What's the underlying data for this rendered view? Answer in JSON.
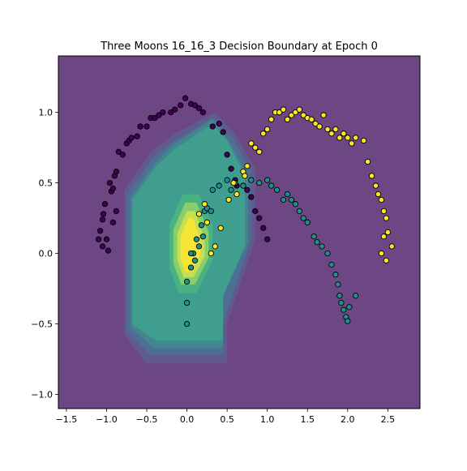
{
  "chart_data": {
    "type": "scatter",
    "title": "Three Moons 16_16_3 Decision Boundary at Epoch 0",
    "xlabel": "",
    "ylabel": "",
    "xlim": [
      -1.6,
      2.9
    ],
    "ylim": [
      -1.1,
      1.4
    ],
    "xticks": [
      -1.5,
      -1.0,
      -0.5,
      0.0,
      0.5,
      1.0,
      1.5,
      2.0,
      2.5
    ],
    "yticks": [
      -1.0,
      -0.5,
      0.0,
      0.5,
      1.0
    ],
    "xtick_labels": [
      "−1.5",
      "−1.0",
      "−0.5",
      "0.0",
      "0.5",
      "1.0",
      "1.5",
      "2.0",
      "2.5"
    ],
    "ytick_labels": [
      "−1.0",
      "−0.5",
      "0.0",
      "0.5",
      "1.0"
    ],
    "grid": false,
    "background_region_color": "#6c4783",
    "contours": [
      {
        "level": 1,
        "color": "#5f5b8f",
        "points": [
          [
            -0.78,
            -0.58
          ],
          [
            -0.78,
            0.45
          ],
          [
            -0.45,
            0.72
          ],
          [
            -0.15,
            0.85
          ],
          [
            0.35,
            1.0
          ],
          [
            0.6,
            0.85
          ],
          [
            0.85,
            0.6
          ],
          [
            0.85,
            0.1
          ],
          [
            0.5,
            -0.5
          ],
          [
            0.5,
            -0.78
          ],
          [
            -0.5,
            -0.78
          ]
        ]
      },
      {
        "level": 2,
        "color": "#4e6e93",
        "points": [
          [
            -0.75,
            -0.55
          ],
          [
            -0.75,
            0.42
          ],
          [
            -0.42,
            0.68
          ],
          [
            -0.15,
            0.8
          ],
          [
            0.32,
            0.96
          ],
          [
            0.57,
            0.82
          ],
          [
            0.8,
            0.58
          ],
          [
            0.8,
            0.1
          ],
          [
            0.45,
            -0.5
          ],
          [
            0.45,
            -0.72
          ],
          [
            -0.45,
            -0.72
          ]
        ]
      },
      {
        "level": 3,
        "color": "#42878e",
        "points": [
          [
            -0.7,
            -0.52
          ],
          [
            -0.7,
            0.4
          ],
          [
            -0.4,
            0.64
          ],
          [
            -0.15,
            0.78
          ],
          [
            0.32,
            0.95
          ],
          [
            0.52,
            0.8
          ],
          [
            0.76,
            0.55
          ],
          [
            0.76,
            0.08
          ],
          [
            0.45,
            -0.3
          ],
          [
            0.45,
            -0.67
          ],
          [
            -0.42,
            -0.67
          ]
        ]
      },
      {
        "level": 4,
        "color": "#3f9e8e",
        "points": [
          [
            -0.68,
            -0.5
          ],
          [
            -0.68,
            0.38
          ],
          [
            -0.38,
            0.62
          ],
          [
            -0.15,
            0.74
          ],
          [
            0.32,
            0.92
          ],
          [
            0.5,
            0.8
          ],
          [
            0.72,
            0.55
          ],
          [
            0.72,
            0.05
          ],
          [
            0.45,
            -0.3
          ],
          [
            0.45,
            -0.62
          ],
          [
            -0.38,
            -0.62
          ]
        ]
      },
      {
        "level": 5,
        "color": "#49b283",
        "points": [
          [
            -0.22,
            0.2
          ],
          [
            -0.05,
            0.42
          ],
          [
            0.15,
            0.42
          ],
          [
            0.32,
            0.2
          ],
          [
            0.32,
            -0.05
          ],
          [
            0.12,
            -0.28
          ],
          [
            -0.1,
            -0.28
          ],
          [
            -0.22,
            -0.1
          ]
        ]
      },
      {
        "level": 6,
        "color": "#88cf6c",
        "points": [
          [
            -0.17,
            0.17
          ],
          [
            -0.02,
            0.36
          ],
          [
            0.12,
            0.36
          ],
          [
            0.27,
            0.15
          ],
          [
            0.27,
            -0.03
          ],
          [
            0.1,
            -0.22
          ],
          [
            -0.07,
            -0.22
          ],
          [
            -0.17,
            -0.07
          ]
        ]
      },
      {
        "level": 7,
        "color": "#c8df50",
        "points": [
          [
            -0.12,
            0.14
          ],
          [
            0.0,
            0.3
          ],
          [
            0.1,
            0.3
          ],
          [
            0.22,
            0.1
          ],
          [
            0.22,
            -0.02
          ],
          [
            0.08,
            -0.17
          ],
          [
            -0.04,
            -0.17
          ],
          [
            -0.12,
            -0.05
          ]
        ]
      },
      {
        "level": 8,
        "color": "#f5e636",
        "points": [
          [
            -0.08,
            0.12
          ],
          [
            0.02,
            0.25
          ],
          [
            0.08,
            0.25
          ],
          [
            0.17,
            0.08
          ],
          [
            0.17,
            0.0
          ],
          [
            0.06,
            -0.13
          ],
          [
            -0.02,
            -0.13
          ],
          [
            -0.08,
            -0.04
          ]
        ]
      }
    ],
    "series": [
      {
        "color": "#440154",
        "points": [
          [
            -1.08,
            0.16
          ],
          [
            -1.05,
            0.24
          ],
          [
            -1.04,
            0.28
          ],
          [
            -1.02,
            0.35
          ],
          [
            -1.0,
            0.1
          ],
          [
            -0.98,
            0.02
          ],
          [
            -0.96,
            0.5
          ],
          [
            -0.94,
            0.44
          ],
          [
            -0.92,
            0.46
          ],
          [
            -0.9,
            0.55
          ],
          [
            -0.88,
            0.58
          ],
          [
            -0.85,
            0.72
          ],
          [
            -0.8,
            0.7
          ],
          [
            -0.75,
            0.78
          ],
          [
            -0.72,
            0.8
          ],
          [
            -0.69,
            0.82
          ],
          [
            -0.62,
            0.83
          ],
          [
            -0.58,
            0.9
          ],
          [
            -0.5,
            0.9
          ],
          [
            -0.45,
            0.96
          ],
          [
            -0.4,
            0.96
          ],
          [
            -0.35,
            0.98
          ],
          [
            -0.3,
            1.0
          ],
          [
            -0.2,
            1.0
          ],
          [
            -0.15,
            1.02
          ],
          [
            -0.08,
            1.05
          ],
          [
            -0.02,
            1.1
          ],
          [
            0.05,
            1.06
          ],
          [
            0.1,
            1.05
          ],
          [
            0.15,
            1.03
          ],
          [
            0.2,
            1.0
          ],
          [
            0.32,
            0.9
          ],
          [
            0.4,
            0.92
          ],
          [
            0.45,
            0.86
          ],
          [
            0.5,
            0.7
          ],
          [
            0.55,
            0.6
          ],
          [
            0.6,
            0.52
          ],
          [
            0.62,
            0.48
          ],
          [
            0.7,
            0.48
          ],
          [
            0.75,
            0.45
          ],
          [
            0.8,
            0.4
          ],
          [
            0.85,
            0.3
          ],
          [
            0.9,
            0.25
          ],
          [
            0.95,
            0.18
          ],
          [
            1.0,
            0.1
          ],
          [
            -1.1,
            0.1
          ],
          [
            -1.05,
            0.05
          ],
          [
            -0.92,
            0.22
          ],
          [
            -0.88,
            0.3
          ]
        ]
      },
      {
        "color": "#21908d",
        "points": [
          [
            0.0,
            -0.5
          ],
          [
            0.0,
            -0.35
          ],
          [
            0.0,
            -0.2
          ],
          [
            0.05,
            -0.1
          ],
          [
            0.08,
            0.0
          ],
          [
            0.12,
            0.1
          ],
          [
            0.15,
            0.05
          ],
          [
            0.18,
            0.2
          ],
          [
            0.22,
            0.3
          ],
          [
            0.25,
            0.32
          ],
          [
            0.32,
            0.45
          ],
          [
            0.4,
            0.48
          ],
          [
            0.5,
            0.52
          ],
          [
            0.55,
            0.45
          ],
          [
            0.6,
            0.5
          ],
          [
            0.7,
            0.48
          ],
          [
            0.8,
            0.52
          ],
          [
            0.9,
            0.5
          ],
          [
            1.0,
            0.52
          ],
          [
            1.05,
            0.48
          ],
          [
            1.12,
            0.45
          ],
          [
            1.2,
            0.38
          ],
          [
            1.25,
            0.42
          ],
          [
            1.3,
            0.38
          ],
          [
            1.35,
            0.35
          ],
          [
            1.4,
            0.3
          ],
          [
            1.45,
            0.25
          ],
          [
            1.5,
            0.22
          ],
          [
            1.58,
            0.12
          ],
          [
            1.62,
            0.08
          ],
          [
            1.68,
            0.05
          ],
          [
            1.75,
            0.0
          ],
          [
            1.8,
            -0.08
          ],
          [
            1.85,
            -0.15
          ],
          [
            1.88,
            -0.22
          ],
          [
            1.9,
            -0.3
          ],
          [
            1.92,
            -0.35
          ],
          [
            1.95,
            -0.4
          ],
          [
            1.98,
            -0.45
          ],
          [
            2.0,
            -0.48
          ],
          [
            2.02,
            -0.38
          ],
          [
            2.1,
            -0.3
          ],
          [
            0.05,
            0.0
          ],
          [
            0.1,
            -0.05
          ],
          [
            0.2,
            0.12
          ],
          [
            0.3,
            0.3
          ]
        ]
      },
      {
        "color": "#fde725",
        "points": [
          [
            0.15,
            0.28
          ],
          [
            0.22,
            0.35
          ],
          [
            0.25,
            0.22
          ],
          [
            0.3,
            0.0
          ],
          [
            0.35,
            0.05
          ],
          [
            0.42,
            0.18
          ],
          [
            0.52,
            0.38
          ],
          [
            0.58,
            0.5
          ],
          [
            0.62,
            0.42
          ],
          [
            0.7,
            0.58
          ],
          [
            0.72,
            0.55
          ],
          [
            0.75,
            0.62
          ],
          [
            0.8,
            0.78
          ],
          [
            0.85,
            0.75
          ],
          [
            0.9,
            0.72
          ],
          [
            0.95,
            0.85
          ],
          [
            1.0,
            0.88
          ],
          [
            1.05,
            0.95
          ],
          [
            1.1,
            1.0
          ],
          [
            1.15,
            1.0
          ],
          [
            1.2,
            1.02
          ],
          [
            1.25,
            0.95
          ],
          [
            1.3,
            0.98
          ],
          [
            1.35,
            1.0
          ],
          [
            1.4,
            1.02
          ],
          [
            1.45,
            0.98
          ],
          [
            1.5,
            0.96
          ],
          [
            1.55,
            0.95
          ],
          [
            1.6,
            0.92
          ],
          [
            1.65,
            0.9
          ],
          [
            1.7,
            0.98
          ],
          [
            1.75,
            0.88
          ],
          [
            1.8,
            0.85
          ],
          [
            1.85,
            0.88
          ],
          [
            1.9,
            0.82
          ],
          [
            1.95,
            0.85
          ],
          [
            2.0,
            0.82
          ],
          [
            2.05,
            0.78
          ],
          [
            2.1,
            0.82
          ],
          [
            2.2,
            0.8
          ],
          [
            2.25,
            0.65
          ],
          [
            2.3,
            0.55
          ],
          [
            2.35,
            0.48
          ],
          [
            2.38,
            0.42
          ],
          [
            2.42,
            0.38
          ],
          [
            2.45,
            0.3
          ],
          [
            2.48,
            0.25
          ],
          [
            2.5,
            0.15
          ],
          [
            2.55,
            0.05
          ],
          [
            2.48,
            -0.05
          ],
          [
            2.42,
            0.0
          ],
          [
            2.45,
            0.12
          ]
        ]
      }
    ]
  }
}
